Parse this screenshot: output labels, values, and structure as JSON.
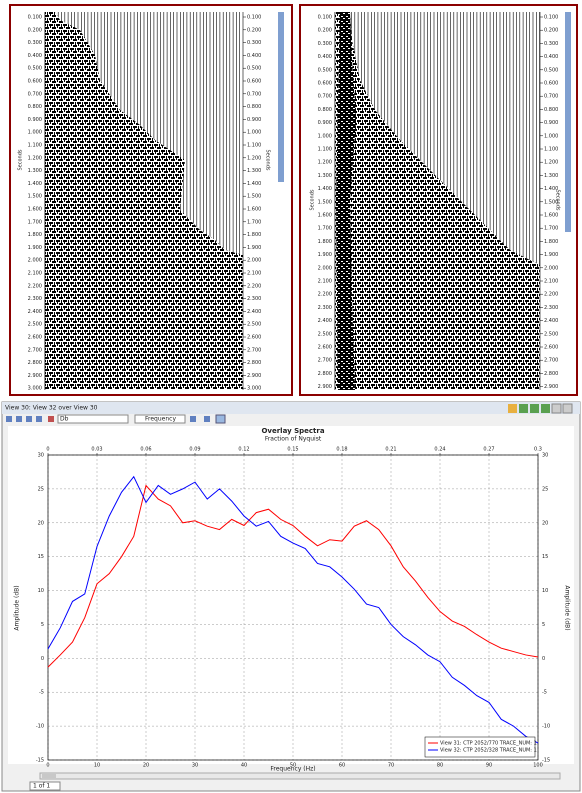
{
  "seismic_panels": [
    {
      "axis_label": "Seconds",
      "time_labels": [
        "0.100",
        "0.200",
        "0.300",
        "0.400",
        "0.500",
        "0.600",
        "0.700",
        "0.800",
        "0.900",
        "1.000",
        "1.100",
        "1.200",
        "1.300",
        "1.400",
        "1.500",
        "1.600",
        "1.700",
        "1.800",
        "1.900",
        "2.000",
        "2.100",
        "2.200",
        "2.300",
        "2.400",
        "2.500",
        "2.600",
        "2.700",
        "2.800",
        "2.900",
        "3.000"
      ]
    },
    {
      "axis_label": "Seconds",
      "time_labels": [
        "0.100",
        "0.200",
        "0.300",
        "0.400",
        "0.500",
        "0.600",
        "0.700",
        "0.800",
        "0.900",
        "1.000",
        "1.100",
        "1.200",
        "1.300",
        "1.400",
        "1.500",
        "1.600",
        "1.700",
        "1.800",
        "1.900",
        "2.000",
        "2.100",
        "2.200",
        "2.300",
        "2.400",
        "2.500",
        "2.600",
        "2.700",
        "2.800",
        "2.900"
      ]
    }
  ],
  "window": {
    "title": "View 30: View 32 over View 30",
    "scale_select": "Db",
    "mode_select": "Frequency",
    "pager": "1 of 1"
  },
  "chart_data": {
    "type": "line",
    "title": "Overlay Spectra",
    "x2_label": "Fraction of Nyquist",
    "x_label": "Frequency (Hz)",
    "y_label": "Amplitude (dB)",
    "y2_label": "Amplitude (dB)",
    "x": [
      0,
      2.5,
      5,
      7.5,
      10,
      12.5,
      15,
      17.5,
      20,
      22.5,
      25,
      27.5,
      30,
      32.5,
      35,
      37.5,
      40,
      42.5,
      45,
      47.5,
      50,
      52.5,
      55,
      57.5,
      60,
      62.5,
      65,
      67.5,
      70,
      72.5,
      75,
      77.5,
      80,
      82.5,
      85,
      87.5,
      90,
      92.5,
      95,
      97.5,
      100
    ],
    "series": [
      {
        "name": "View 31: CTP 2052/770 TRACE_NUM: 1",
        "color": "#ff0000",
        "values": [
          -1.3,
          0.5,
          2.4,
          6,
          11,
          12.5,
          15,
          18,
          25.5,
          23.5,
          22.5,
          20,
          20.3,
          19.5,
          19,
          20.5,
          19.6,
          21.5,
          22,
          20.5,
          19.6,
          18,
          16.6,
          17.5,
          17.3,
          19.5,
          20.3,
          19,
          16.6,
          13.5,
          11.4,
          9,
          6.9,
          5.5,
          4.7,
          3.5,
          2.4,
          1.5,
          1,
          0.5,
          0.2
        ]
      },
      {
        "name": "View 32: CTP 2052/328 TRACE_NUM: 1",
        "color": "#0000ff",
        "values": [
          1.4,
          4.5,
          8.4,
          9.5,
          16.5,
          21,
          24.5,
          26.8,
          23,
          25.5,
          24.2,
          25,
          26,
          23.5,
          25,
          23.2,
          21,
          19.5,
          20.2,
          18,
          17,
          16.2,
          14,
          13.5,
          12,
          10.2,
          8,
          7.5,
          5,
          3.2,
          2,
          0.5,
          -0.5,
          -2.8,
          -4,
          -5.5,
          -6.5,
          -9,
          -10,
          -11.5,
          -12.5
        ]
      }
    ],
    "xlim": [
      0,
      100
    ],
    "xticks": [
      0,
      10,
      20,
      30,
      40,
      50,
      60,
      70,
      80,
      90,
      100
    ],
    "x2lim": [
      0,
      0.3
    ],
    "x2ticks": [
      0,
      0.03,
      0.06,
      0.09,
      0.12,
      0.15,
      0.18,
      0.21,
      0.24,
      0.27,
      0.3
    ],
    "ylim": [
      -15,
      30
    ],
    "yticks": [
      -15,
      -10,
      -5,
      0,
      5,
      10,
      15,
      20,
      25,
      30
    ],
    "grid": true,
    "legend": "lower right"
  }
}
